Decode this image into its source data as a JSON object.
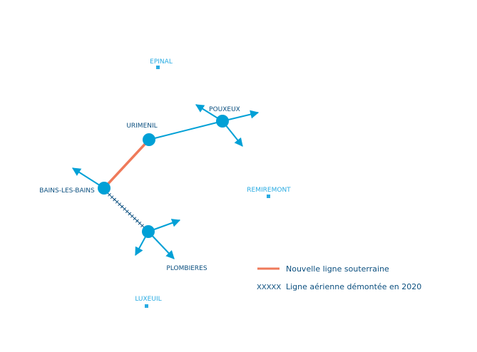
{
  "map": {
    "cities": [
      {
        "label": "EPINAL"
      },
      {
        "label": "REMIREMONT"
      },
      {
        "label": "LUXEUIL"
      }
    ],
    "substations": [
      {
        "label": "URIMENIL"
      },
      {
        "label": "POUXEUX"
      },
      {
        "label": "BAINS-LES-BAINS"
      },
      {
        "label": "PLOMBIERES"
      }
    ],
    "legend": [
      {
        "label": "Nouvelle ligne souterraine"
      },
      {
        "symbol": "XXXXX",
        "label": "Ligne aérienne démontée en 2020"
      }
    ]
  }
}
